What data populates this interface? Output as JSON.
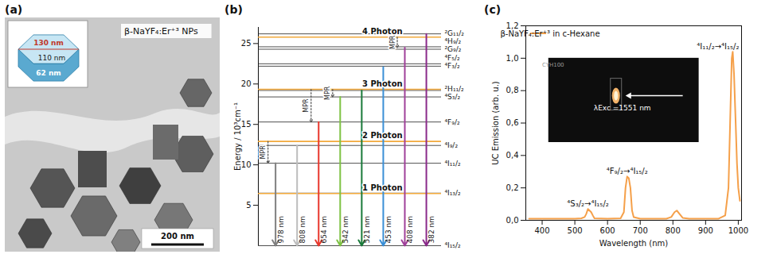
{
  "panel_a": {
    "letter": "(a)",
    "label": "β-NaYF₄:Er⁺³ NPs",
    "dimensions": {
      "length": "130 nm",
      "width": "110 nm",
      "thickness": "62 nm"
    },
    "scale_bar": "200 nm"
  },
  "panel_b": {
    "letter": "(b)",
    "ylabel": "Energy / 10³cm⁻¹",
    "ylim": [
      0,
      27
    ],
    "yticks": [
      5,
      10,
      15,
      20,
      25
    ],
    "levels": [
      {
        "name": "⁴I₁₅/₂",
        "energy": 0
      },
      {
        "name": "⁴I₁₃/₂",
        "energy": 6.5
      },
      {
        "name": "⁴I₁₁/₂",
        "energy": 10.2
      },
      {
        "name": "⁴I₉/₂",
        "energy": 12.4
      },
      {
        "name": "⁴F₉/₂",
        "energy": 15.3
      },
      {
        "name": "⁴S₃/₂",
        "energy": 18.4
      },
      {
        "name": "²H₁₁/₂",
        "energy": 19.2
      },
      {
        "name": "⁴F₃/₂",
        "energy": 22.2
      },
      {
        "name": "⁴F₅/₂",
        "energy": 22.5
      },
      {
        "name": "²G₉/₂",
        "energy": 24.3
      },
      {
        "name": "⁴H₉/₂",
        "energy": 24.6
      },
      {
        "name": "²G₁₁/₂",
        "energy": 26.2
      }
    ],
    "photons": [
      {
        "label": "1 Photon",
        "energy": 6.45
      },
      {
        "label": "2 Photon",
        "energy": 12.9
      },
      {
        "label": "3 Photon",
        "energy": 19.34
      },
      {
        "label": "4 Photon",
        "energy": 25.8
      }
    ],
    "emissions": [
      {
        "label": "978 nm",
        "energy": 10.2,
        "color": "#7f7f7f",
        "mpr": {
          "label": "MPR",
          "from": 12.9
        }
      },
      {
        "label": "808 nm",
        "energy": 12.4,
        "color": "#bdbdbd"
      },
      {
        "label": "654 nm",
        "energy": 15.3,
        "color": "#e8372c",
        "mpr": {
          "label": "MPR",
          "from": 19.34
        }
      },
      {
        "label": "542 nm",
        "energy": 18.4,
        "color": "#7dc242",
        "mpr": {
          "label": "MPR",
          "from": 19.34
        }
      },
      {
        "label": "521 nm",
        "energy": 19.2,
        "color": "#1a7a3a"
      },
      {
        "label": "453 nm",
        "energy": 22.1,
        "color": "#3a8fd6"
      },
      {
        "label": "408 nm",
        "energy": 24.5,
        "color": "#a0409a",
        "mpr": {
          "label": "MPR",
          "from": 25.8
        }
      },
      {
        "label": "382 nm",
        "energy": 26.2,
        "color": "#8a2a8a"
      }
    ]
  },
  "chart_data": {
    "type": "line",
    "letter": "(c)",
    "xlabel": "Wavelength (nm)",
    "ylabel": "UC Emission (arb. u.)",
    "xlim": [
      350,
      1010
    ],
    "xticks": [
      400,
      500,
      600,
      700,
      800,
      900,
      1000
    ],
    "ylim": [
      0,
      1.2
    ],
    "yticks": [
      {
        "value": 0,
        "label": "0,0"
      },
      {
        "value": 0.2,
        "label": "0,2"
      },
      {
        "value": 0.4,
        "label": "0,4"
      },
      {
        "value": 0.6,
        "label": "0,6"
      },
      {
        "value": 0.8,
        "label": "0,8"
      },
      {
        "value": 1.0,
        "label": "1,0"
      },
      {
        "value": 1.2,
        "label": "1,2"
      }
    ],
    "grid": false,
    "legend": "top-left",
    "x": [
      360,
      380,
      400,
      450,
      500,
      520,
      530,
      535,
      540,
      545,
      550,
      555,
      560,
      600,
      640,
      650,
      655,
      660,
      665,
      670,
      675,
      680,
      700,
      780,
      795,
      805,
      812,
      820,
      830,
      850,
      940,
      960,
      970,
      975,
      980,
      983,
      987,
      992,
      996,
      1000,
      1005
    ],
    "series": [
      {
        "name": "β-NaYF₄:Er⁺³ in c-Hexane",
        "color": "#f5a04a",
        "values": [
          0.01,
          0.01,
          0.01,
          0.01,
          0.01,
          0.012,
          0.02,
          0.04,
          0.07,
          0.06,
          0.05,
          0.03,
          0.012,
          0.01,
          0.012,
          0.05,
          0.2,
          0.27,
          0.26,
          0.2,
          0.06,
          0.02,
          0.01,
          0.01,
          0.02,
          0.05,
          0.06,
          0.04,
          0.015,
          0.01,
          0.01,
          0.03,
          0.2,
          0.6,
          1.0,
          1.04,
          0.9,
          0.6,
          0.35,
          0.2,
          0.12
        ]
      }
    ],
    "annotations": [
      {
        "text": "⁴S₃/₂→⁴I₁₅/₂",
        "x": 540
      },
      {
        "text": "⁴F₉/₂→⁴I₁₅/₂",
        "x": 660
      },
      {
        "text": "⁴I₁₁/₂→⁴I₁₅/₂",
        "x": 983
      }
    ],
    "inset": {
      "excitation": "λExc =1551 nm",
      "sample": "CYH100"
    }
  }
}
